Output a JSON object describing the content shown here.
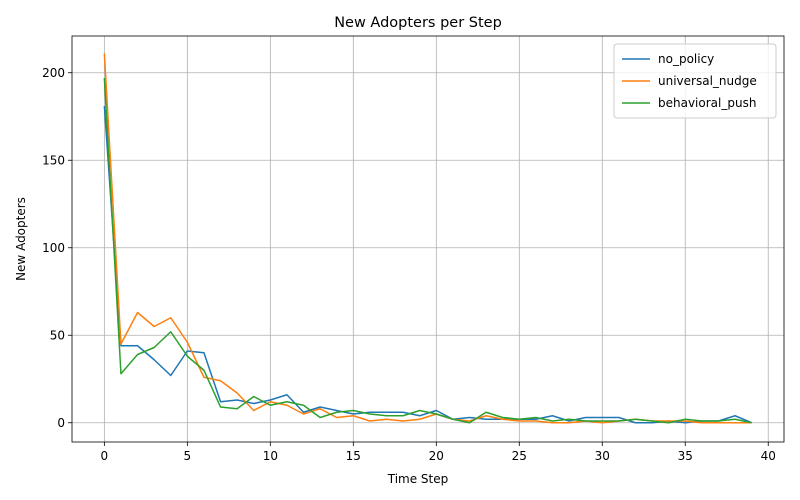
{
  "chart_data": {
    "type": "line",
    "title": "New Adopters per Step",
    "xlabel": "Time Step",
    "ylabel": "New Adopters",
    "xlim": [
      -1.95,
      40.95
    ],
    "ylim": [
      -11,
      221
    ],
    "xticks": [
      0,
      5,
      10,
      15,
      20,
      25,
      30,
      35,
      40
    ],
    "yticks": [
      0,
      50,
      100,
      150,
      200
    ],
    "grid": true,
    "legend_position": "top-right",
    "x": [
      0,
      1,
      2,
      3,
      4,
      5,
      6,
      7,
      8,
      9,
      10,
      11,
      12,
      13,
      14,
      15,
      16,
      17,
      18,
      19,
      20,
      21,
      22,
      23,
      24,
      25,
      26,
      27,
      28,
      29,
      30,
      31,
      32,
      33,
      34,
      35,
      36,
      37,
      38,
      39
    ],
    "series": [
      {
        "name": "no_policy",
        "color": "#1f77b4",
        "values": [
          181,
          44,
          44,
          36,
          27,
          41,
          40,
          12,
          13,
          11,
          13,
          16,
          6,
          9,
          7,
          5,
          6,
          6,
          6,
          4,
          7,
          2,
          3,
          2,
          2,
          2,
          2,
          4,
          1,
          3,
          3,
          3,
          0,
          0,
          1,
          0,
          1,
          1,
          4,
          0
        ]
      },
      {
        "name": "universal_nudge",
        "color": "#ff7f0e",
        "values": [
          211,
          45,
          63,
          55,
          60,
          46,
          26,
          24,
          17,
          7,
          12,
          10,
          5,
          8,
          3,
          4,
          1,
          2,
          1,
          2,
          5,
          2,
          1,
          4,
          2,
          1,
          1,
          0,
          0,
          1,
          0,
          1,
          2,
          1,
          1,
          1,
          0,
          0,
          0,
          0
        ]
      },
      {
        "name": "behavioral_push",
        "color": "#2ca02c",
        "values": [
          197,
          28,
          39,
          43,
          52,
          38,
          30,
          9,
          8,
          15,
          10,
          12,
          10,
          3,
          6,
          7,
          5,
          4,
          4,
          7,
          5,
          2,
          0,
          6,
          3,
          2,
          3,
          1,
          2,
          1,
          1,
          1,
          2,
          1,
          0,
          2,
          1,
          1,
          2,
          0
        ]
      }
    ]
  }
}
